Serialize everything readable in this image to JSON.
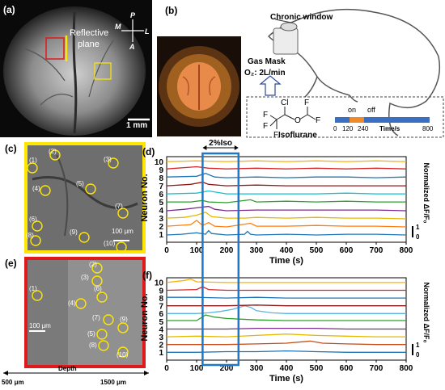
{
  "panel_labels": [
    "(a)",
    "(b)",
    "(c)",
    "(d)",
    "(e)",
    "(f)"
  ],
  "panel_a": {
    "reflective_plane": "Reflective plane",
    "scale_bar": "1 mm",
    "compass": {
      "p": "P",
      "m": "M",
      "l": "L",
      "a": "A"
    }
  },
  "panel_b": {
    "chronic_window": "Chronic window",
    "gas_mask": "Gas Mask",
    "o2_flow": "O₂: 2L/min",
    "isoflurane": "Isoflurane",
    "atoms": {
      "cl": "Cl",
      "f": "F",
      "o": "O"
    },
    "timeline": {
      "on": "on",
      "off": "off",
      "unit": "Time/s",
      "ticks": [
        "0",
        "120",
        "240",
        "800"
      ]
    }
  },
  "panel_c": {
    "scale_bar": "100 μm",
    "neuron_labels": [
      "(1)",
      "(2)",
      "(3)",
      "(4)",
      "(5)",
      "(6)",
      "(7)",
      "(8)",
      "(9)",
      "(10)"
    ]
  },
  "panel_e": {
    "scale_bar": "100 μm",
    "neuron_labels": [
      "(1)",
      "(2)",
      "(3)",
      "(4)",
      "(5)",
      "(6)",
      "(7)",
      "(8)",
      "(9)",
      "(10)"
    ],
    "depth_label": "Depth",
    "depth_start": "500 μm",
    "depth_end": "1500 μm"
  },
  "iso_label": "2%Iso",
  "chart_data": [
    {
      "panel": "(d)",
      "type": "line",
      "xlabel": "Time (s)",
      "ylabel": "Neuron No.",
      "right_label": "Normalized ΔF/F₀",
      "scale_ticks": [
        "1",
        "0"
      ],
      "xlim": [
        0,
        800
      ],
      "xticks": [
        0,
        100,
        200,
        300,
        400,
        500,
        600,
        700,
        800
      ],
      "yticks": [
        1,
        2,
        3,
        4,
        5,
        6,
        7,
        8,
        9,
        10
      ],
      "iso_window": [
        120,
        240
      ],
      "series": [
        {
          "neuron": 1,
          "color": "#1f77b4",
          "x": [
            0,
            50,
            100,
            130,
            140,
            150,
            200,
            260,
            270,
            280,
            300,
            400,
            500,
            600,
            700,
            800
          ],
          "y": [
            0,
            0.1,
            0.3,
            0.1,
            0.6,
            0.2,
            0,
            0.1,
            0.5,
            0.1,
            0,
            0.1,
            0,
            0.1,
            0.1,
            0
          ]
        },
        {
          "neuron": 2,
          "color": "#ff7f0e",
          "x": [
            0,
            80,
            100,
            120,
            140,
            160,
            200,
            280,
            300,
            400,
            500,
            600,
            700,
            800
          ],
          "y": [
            0.1,
            0.3,
            0.9,
            0.2,
            0.6,
            0.1,
            0,
            0.5,
            0.1,
            0.1,
            0.2,
            0.1,
            0.1,
            0
          ]
        },
        {
          "neuron": 3,
          "color": "#e6b800",
          "x": [
            0,
            60,
            100,
            130,
            150,
            200,
            260,
            300,
            400,
            500,
            600,
            700,
            800
          ],
          "y": [
            0.1,
            0.2,
            0.5,
            0.9,
            0.3,
            0.1,
            0.1,
            0.2,
            0.1,
            0.2,
            0.1,
            0.1,
            0
          ]
        },
        {
          "neuron": 4,
          "color": "#7b2a8a",
          "x": [
            0,
            60,
            100,
            140,
            160,
            200,
            300,
            400,
            500,
            600,
            700,
            800
          ],
          "y": [
            0,
            0.2,
            0.4,
            0.6,
            0.2,
            0,
            0.1,
            0.1,
            0.1,
            0.1,
            0.1,
            0
          ]
        },
        {
          "neuron": 5,
          "color": "#2ca02c",
          "x": [
            0,
            80,
            120,
            140,
            200,
            280,
            300,
            400,
            500,
            600,
            700,
            800
          ],
          "y": [
            0.1,
            0.1,
            0.3,
            0.1,
            0,
            0.4,
            0.1,
            0.2,
            0.1,
            0.2,
            0.1,
            0.1
          ]
        },
        {
          "neuron": 6,
          "color": "#17becf",
          "x": [
            0,
            100,
            140,
            200,
            300,
            400,
            500,
            600,
            700,
            800
          ],
          "y": [
            0.1,
            0.2,
            0.5,
            0.1,
            0.1,
            0.1,
            0.1,
            0.2,
            0.1,
            0.1
          ]
        },
        {
          "neuron": 7,
          "color": "#8b1a1a",
          "x": [
            0,
            80,
            120,
            140,
            200,
            300,
            400,
            500,
            600,
            700,
            800
          ],
          "y": [
            0.1,
            0.3,
            0.6,
            0.3,
            0.1,
            0.2,
            0.1,
            0.1,
            0.1,
            0.1,
            0.1
          ]
        },
        {
          "neuron": 8,
          "color": "#1f77b4",
          "x": [
            0,
            100,
            130,
            160,
            200,
            300,
            400,
            500,
            600,
            700,
            800
          ],
          "y": [
            0.2,
            0.3,
            0.7,
            0.2,
            0.1,
            0.2,
            0.1,
            0.2,
            0.2,
            0.1,
            0.2
          ]
        },
        {
          "neuron": 9,
          "color": "#d62728",
          "x": [
            0,
            100,
            140,
            200,
            300,
            400,
            500,
            600,
            700,
            800
          ],
          "y": [
            0.2,
            0.5,
            0.3,
            0.2,
            0.3,
            0.2,
            0.3,
            0.2,
            0.3,
            0.2
          ]
        },
        {
          "neuron": 10,
          "color": "#ffb000",
          "x": [
            0,
            100,
            200,
            300,
            400,
            500,
            600,
            700,
            800
          ],
          "y": [
            0.1,
            0.2,
            0.1,
            0.2,
            0.1,
            0.2,
            0.1,
            0.2,
            0.1
          ]
        }
      ]
    },
    {
      "panel": "(f)",
      "type": "line",
      "xlabel": "Time (s)",
      "ylabel": "Neuron No.",
      "right_label": "Normalized ΔF/F₀",
      "scale_ticks": [
        "1",
        "0"
      ],
      "xlim": [
        0,
        800
      ],
      "xticks": [
        0,
        100,
        200,
        300,
        400,
        500,
        600,
        700,
        800
      ],
      "yticks": [
        1,
        2,
        3,
        4,
        5,
        6,
        7,
        8,
        9,
        10
      ],
      "iso_window": [
        120,
        240
      ],
      "series": [
        {
          "neuron": 1,
          "color": "#1f77b4",
          "x": [
            0,
            100,
            200,
            300,
            400,
            500,
            600,
            700,
            800
          ],
          "y": [
            0.1,
            0.1,
            0.2,
            0.2,
            0.3,
            0.2,
            0.1,
            0.1,
            0.1
          ]
        },
        {
          "neuron": 2,
          "color": "#c44e1b",
          "x": [
            0,
            100,
            200,
            300,
            400,
            480,
            520,
            600,
            700,
            800
          ],
          "y": [
            0.1,
            0.1,
            0.1,
            0.2,
            0.3,
            0.6,
            0.3,
            0.2,
            0.1,
            0.1
          ]
        },
        {
          "neuron": 3,
          "color": "#e6b800",
          "x": [
            0,
            100,
            200,
            300,
            400,
            500,
            600,
            700,
            800
          ],
          "y": [
            0.1,
            0.2,
            0.1,
            0.3,
            0.5,
            0.3,
            0.2,
            0.1,
            0.1
          ]
        },
        {
          "neuron": 4,
          "color": "#7b2a8a",
          "x": [
            0,
            100,
            200,
            300,
            400,
            500,
            600,
            700,
            800
          ],
          "y": [
            0.1,
            0.1,
            0.1,
            0.2,
            0.2,
            0.2,
            0.1,
            0.1,
            0.1
          ]
        },
        {
          "neuron": 5,
          "color": "#2ca02c",
          "x": [
            0,
            100,
            130,
            160,
            200,
            250,
            300,
            400,
            500,
            600,
            700,
            800
          ],
          "y": [
            0.2,
            0.2,
            1.0,
            0.7,
            0.5,
            0.4,
            0.3,
            0.2,
            0.2,
            0.2,
            0.2,
            0.2
          ]
        },
        {
          "neuron": 6,
          "color": "#5ab4e0",
          "x": [
            0,
            100,
            140,
            180,
            220,
            260,
            280,
            300,
            350,
            400,
            500,
            600,
            700,
            800
          ],
          "y": [
            0.1,
            0.1,
            0.2,
            0.4,
            0.7,
            1.2,
            1.0,
            0.5,
            0.2,
            0.1,
            0.1,
            0.1,
            0.1,
            0.1
          ]
        },
        {
          "neuron": 7,
          "color": "#8b1a1a",
          "x": [
            0,
            100,
            200,
            300,
            400,
            500,
            600,
            700,
            800
          ],
          "y": [
            0.1,
            0.1,
            0.1,
            0.2,
            0.1,
            0.1,
            0.1,
            0.1,
            0.1
          ]
        },
        {
          "neuron": 8,
          "color": "#1f77b4",
          "x": [
            0,
            100,
            200,
            300,
            400,
            500,
            600,
            700,
            800
          ],
          "y": [
            0.2,
            0.2,
            0.1,
            0.2,
            0.1,
            0.1,
            0.1,
            0.1,
            0.1
          ]
        },
        {
          "neuron": 9,
          "color": "#d62728",
          "x": [
            0,
            100,
            120,
            140,
            200,
            300,
            400,
            500,
            600,
            700,
            800
          ],
          "y": [
            0.1,
            0.2,
            0.6,
            0.2,
            0.1,
            0.1,
            0.1,
            0.1,
            0.1,
            0.1,
            0.1
          ]
        },
        {
          "neuron": 10,
          "color": "#ffb000",
          "x": [
            0,
            60,
            80,
            100,
            200,
            300,
            400,
            500,
            600,
            700,
            800
          ],
          "y": [
            0.1,
            0.4,
            0.6,
            0.2,
            0.1,
            0.1,
            0.1,
            0.1,
            0.1,
            0.1,
            0.1
          ]
        }
      ]
    }
  ]
}
